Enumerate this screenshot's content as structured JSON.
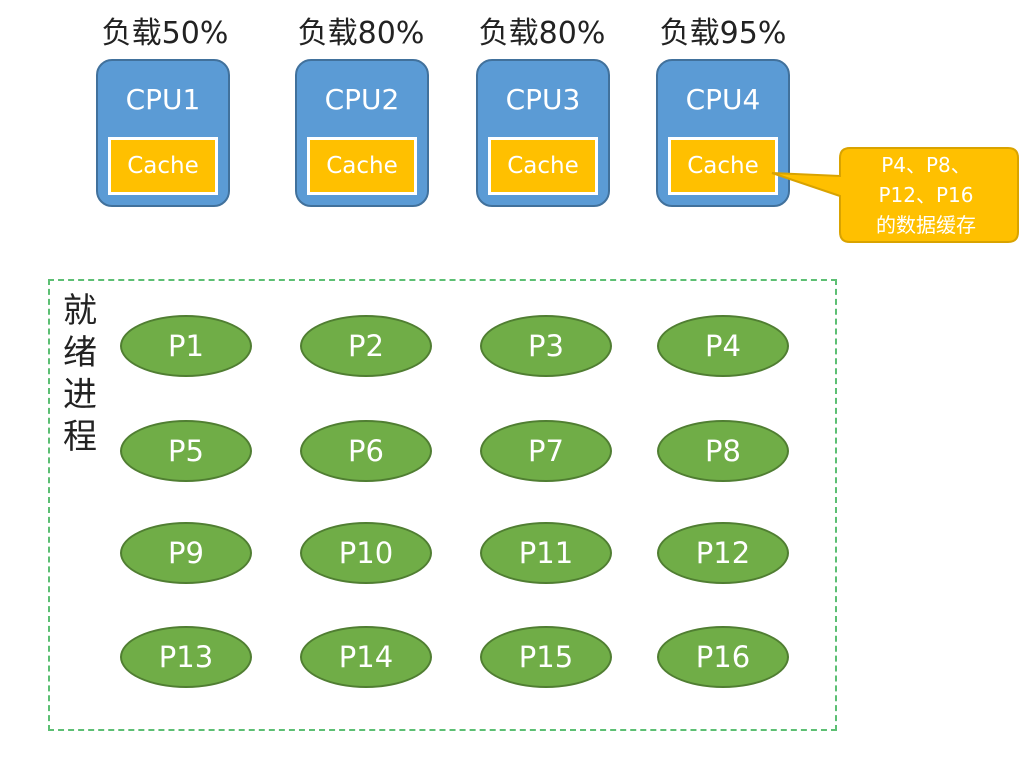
{
  "cpus": [
    {
      "load": "负载50%",
      "name": "CPU1",
      "cache": "Cache"
    },
    {
      "load": "负载80%",
      "name": "CPU2",
      "cache": "Cache"
    },
    {
      "load": "负载80%",
      "name": "CPU3",
      "cache": "Cache"
    },
    {
      "load": "负载95%",
      "name": "CPU4",
      "cache": "Cache"
    }
  ],
  "callout": {
    "line1": "P4、P8、",
    "line2": "P12、P16",
    "line3": "的数据缓存"
  },
  "ready": {
    "label_chars": [
      "就",
      "绪",
      "进",
      "程"
    ]
  },
  "processes": [
    "P1",
    "P2",
    "P3",
    "P4",
    "P5",
    "P6",
    "P7",
    "P8",
    "P9",
    "P10",
    "P11",
    "P12",
    "P13",
    "P14",
    "P15",
    "P16"
  ],
  "colors": {
    "cpu": "#5b9bd5",
    "cache": "#ffc000",
    "process": "#70ad47",
    "ready_border": "#5cbf73",
    "callout": "#ffc000"
  }
}
